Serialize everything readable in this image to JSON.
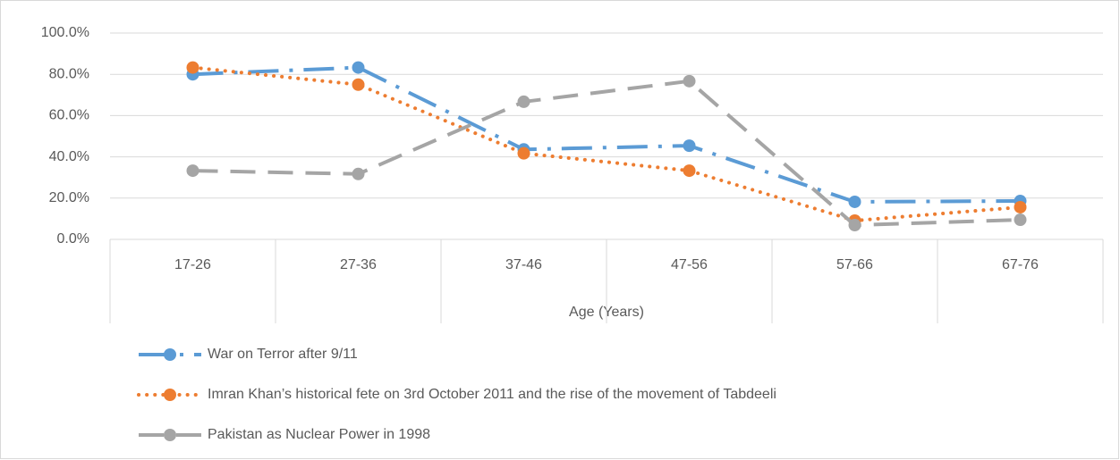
{
  "chart_data": {
    "type": "line",
    "x_label": "Age (Years)",
    "categories": [
      "17-26",
      "27-36",
      "37-46",
      "47-56",
      "57-66",
      "67-76"
    ],
    "series": [
      {
        "name": "War on Terror after 9/11",
        "color": "#5b9bd5",
        "values": [
          80,
          83.3,
          43.6,
          45.4,
          18.2,
          18.6
        ]
      },
      {
        "name": "Imran Khan’s historical fete on 3rd October 2011 and the rise of the movement of Tabdeeli",
        "color": "#ed7d31",
        "values": [
          83.3,
          75,
          41.7,
          33.3,
          9.1,
          15.6
        ]
      },
      {
        "name": "Pakistan as Nuclear Power in 1998",
        "color": "#a5a5a5",
        "values": [
          33.3,
          31.7,
          66.7,
          76.7,
          6.9,
          9.5
        ]
      }
    ],
    "ylim": [
      0,
      100
    ],
    "yticks": [
      {
        "value": 0,
        "label": "0.0%"
      },
      {
        "value": 20,
        "label": "20.0%"
      },
      {
        "value": 40,
        "label": "40.0%"
      },
      {
        "value": 60,
        "label": "60.0%"
      },
      {
        "value": 80,
        "label": "80.0%"
      },
      {
        "value": 100,
        "label": "100.0%"
      }
    ],
    "grid": true,
    "legend": "bottom"
  }
}
